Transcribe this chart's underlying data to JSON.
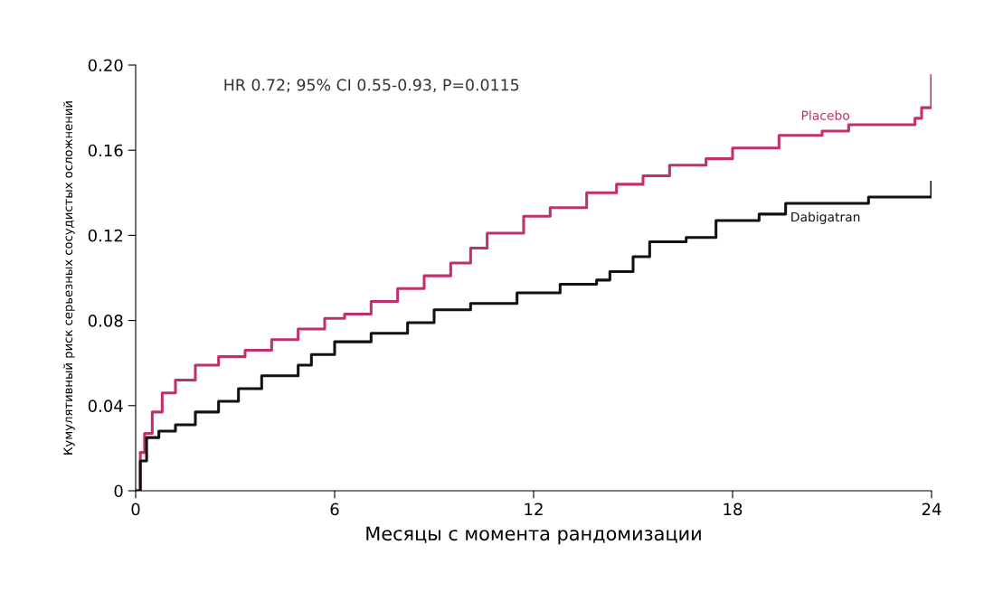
{
  "chart_data": {
    "type": "step",
    "xlabel": "Месяцы с момента рандомизации",
    "ylabel": "Кумулятивный риск серьезных сосудистых осложнений",
    "annotations": [
      "HR 0.72; 95% CI 0.55-0.93, P=0.0115"
    ],
    "xlim": [
      0,
      24
    ],
    "xticks": [
      0,
      6,
      12,
      18,
      24
    ],
    "ylim": [
      0,
      0.2
    ],
    "yticks": [
      0,
      0.04,
      0.08,
      0.12,
      0.16,
      {
        "value": 0.2,
        "label": "0.20"
      }
    ],
    "grid": false,
    "marker": "none",
    "line_style": "solid",
    "series": [
      {
        "name": "Placebo",
        "color": "#c0306e",
        "x": [
          0,
          0.14,
          0.27,
          0.5,
          0.8,
          1.2,
          1.8,
          2.5,
          3.3,
          4.1,
          4.9,
          5.7,
          6.3,
          7.1,
          7.9,
          8.7,
          9.5,
          10.1,
          10.6,
          11.7,
          12.5,
          13.6,
          14.5,
          15.3,
          16.1,
          17.2,
          18.0,
          19.4,
          20.7,
          21.5,
          23.0,
          23.5,
          23.7,
          24,
          24
        ],
        "values": [
          0,
          0.018,
          0.027,
          0.037,
          0.046,
          0.052,
          0.059,
          0.063,
          0.066,
          0.071,
          0.076,
          0.081,
          0.083,
          0.089,
          0.095,
          0.101,
          0.107,
          0.114,
          0.121,
          0.129,
          0.133,
          0.14,
          0.144,
          0.148,
          0.153,
          0.156,
          0.161,
          0.167,
          0.169,
          0.172,
          0.172,
          0.175,
          0.18,
          0.188,
          0.195
        ]
      },
      {
        "name": "Dabigatran",
        "color": "#111111",
        "x": [
          0,
          0.14,
          0.33,
          0.7,
          1.2,
          1.8,
          2.5,
          2.9,
          3.1,
          3.8,
          4.9,
          5.3,
          6.0,
          7.1,
          8.2,
          9.0,
          10.1,
          11.5,
          12.8,
          13.9,
          14.3,
          15.0,
          15.5,
          16.6,
          17.5,
          18.8,
          19.6,
          22.1,
          24,
          24
        ],
        "values": [
          0,
          0.014,
          0.025,
          0.028,
          0.031,
          0.037,
          0.042,
          0.042,
          0.048,
          0.054,
          0.059,
          0.064,
          0.07,
          0.074,
          0.079,
          0.085,
          0.088,
          0.093,
          0.097,
          0.099,
          0.103,
          0.11,
          0.117,
          0.119,
          0.127,
          0.13,
          0.135,
          0.138,
          0.138,
          0.145
        ]
      }
    ]
  }
}
